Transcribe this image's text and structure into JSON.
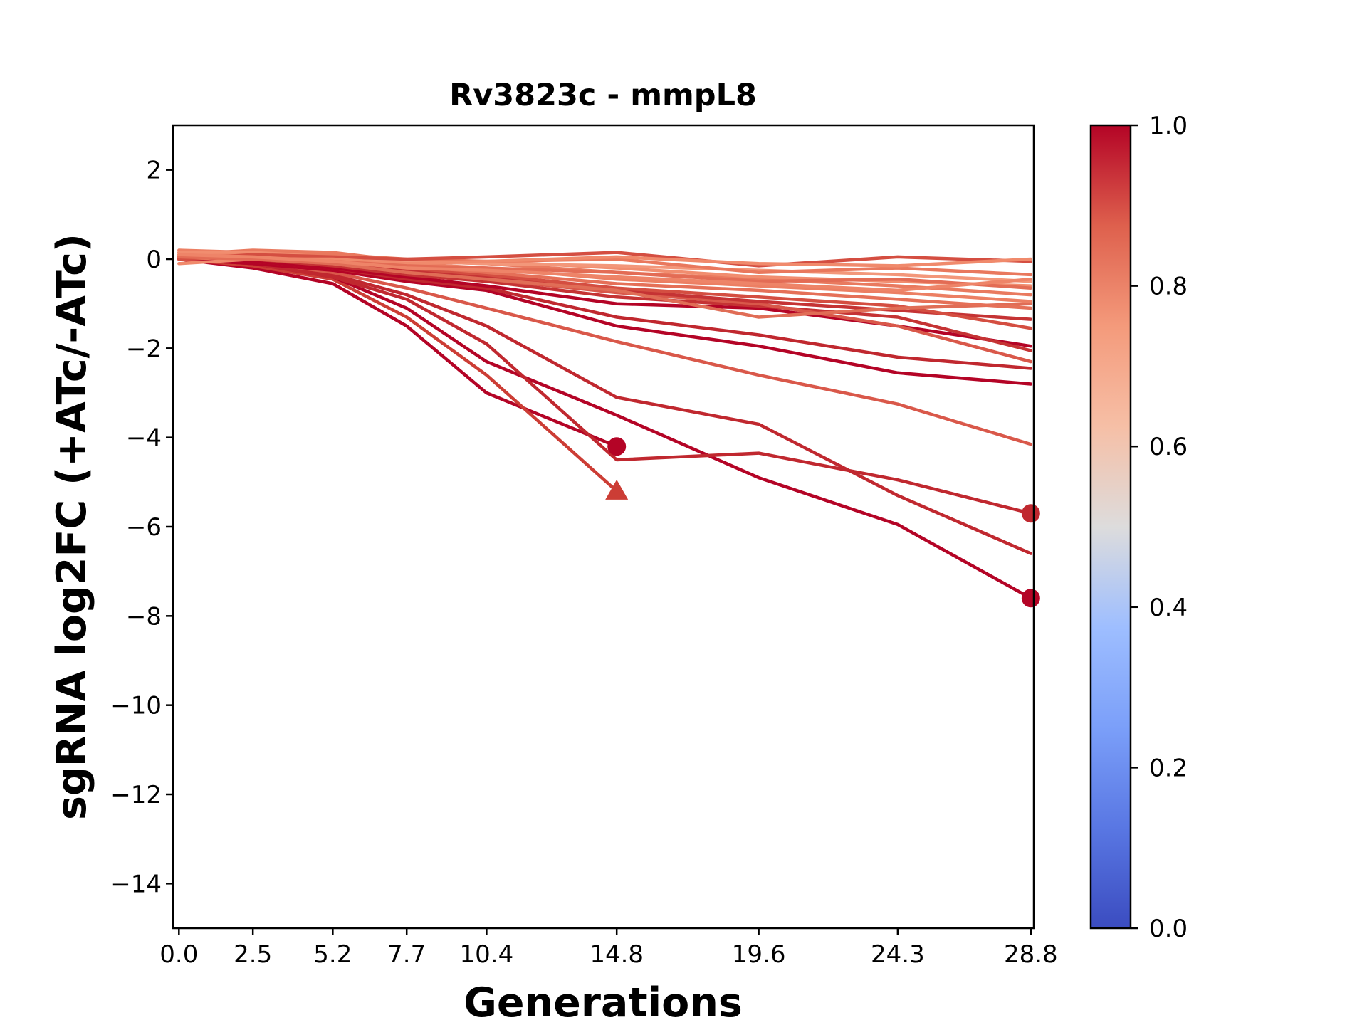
{
  "chart_data": {
    "type": "line",
    "title": "Rv3823c - mmpL8",
    "xlabel": "Generations",
    "ylabel": "sgRNA log2FC (+ATc/-ATc)",
    "x": [
      0.0,
      2.5,
      5.2,
      7.7,
      10.4,
      14.8,
      19.6,
      24.3,
      28.8
    ],
    "x_tick_labels": [
      "0.0",
      "2.5",
      "5.2",
      "7.7",
      "10.4",
      "14.8",
      "19.6",
      "24.3",
      "28.8"
    ],
    "xlim": [
      -0.2,
      28.9
    ],
    "ylim": [
      -15,
      3
    ],
    "y_ticks": [
      2,
      0,
      -2,
      -4,
      -6,
      -8,
      -10,
      -12,
      -14
    ],
    "y_tick_labels": [
      "2",
      "0",
      "−2",
      "−4",
      "−6",
      "−8",
      "−10",
      "−12",
      "−14"
    ],
    "grid": false,
    "colorbar": {
      "colormap": "coolwarm",
      "range": [
        0.0,
        1.0
      ],
      "ticks": [
        0.0,
        0.2,
        0.4,
        0.6,
        0.8,
        1.0
      ],
      "tick_labels": [
        "0.0",
        "0.2",
        "0.4",
        "0.6",
        "0.8",
        "1.0"
      ]
    },
    "series": [
      {
        "color": "#b40426",
        "values": [
          0.0,
          -0.2,
          -0.55,
          -1.5,
          -3.0,
          -4.2,
          null,
          null,
          null
        ],
        "marker": "circle"
      },
      {
        "color": "#cc3d35",
        "values": [
          0.0,
          -0.15,
          -0.45,
          -1.3,
          -2.6,
          -5.2,
          null,
          null,
          null
        ],
        "marker": "triangle"
      },
      {
        "color": "#b40426",
        "values": [
          0.0,
          -0.1,
          -0.4,
          -1.1,
          -2.3,
          -3.5,
          -4.9,
          -5.95,
          -7.6
        ],
        "marker": "circle"
      },
      {
        "color": "#c0282f",
        "values": [
          0.0,
          -0.1,
          -0.4,
          -0.9,
          -1.9,
          -4.5,
          -4.35,
          -4.95,
          -5.7
        ],
        "marker": "circle"
      },
      {
        "color": "#c0282f",
        "values": [
          0.0,
          -0.1,
          -0.35,
          -0.8,
          -1.5,
          -3.1,
          -3.7,
          -5.3,
          -6.6
        ],
        "marker": null
      },
      {
        "color": "#d9584a",
        "values": [
          0.0,
          -0.05,
          -0.3,
          -0.65,
          -1.1,
          -1.85,
          -2.6,
          -3.25,
          -4.15
        ],
        "marker": null
      },
      {
        "color": "#b40426",
        "values": [
          0.0,
          -0.1,
          -0.25,
          -0.5,
          -0.7,
          -1.5,
          -1.95,
          -2.55,
          -2.8
        ],
        "marker": null
      },
      {
        "color": "#c0282f",
        "values": [
          0.0,
          -0.05,
          -0.2,
          -0.45,
          -0.65,
          -1.3,
          -1.7,
          -2.2,
          -2.45
        ],
        "marker": null
      },
      {
        "color": "#b40426",
        "values": [
          0.0,
          -0.05,
          -0.2,
          -0.4,
          -0.6,
          -1.0,
          -1.1,
          -1.5,
          -1.95
        ],
        "marker": null
      },
      {
        "color": "#c53334",
        "values": [
          0.05,
          0.0,
          -0.15,
          -0.35,
          -0.5,
          -0.85,
          -1.05,
          -1.3,
          -2.05
        ],
        "marker": null
      },
      {
        "color": "#d9584a",
        "values": [
          0.05,
          0.0,
          -0.1,
          -0.3,
          -0.45,
          -0.75,
          -1.0,
          -1.5,
          -2.3
        ],
        "marker": null
      },
      {
        "color": "#c53334",
        "values": [
          0.1,
          0.05,
          -0.05,
          -0.25,
          -0.4,
          -0.7,
          -0.95,
          -1.15,
          -1.35
        ],
        "marker": null
      },
      {
        "color": "#d44e41",
        "values": [
          0.1,
          0.1,
          -0.05,
          -0.2,
          -0.35,
          -0.65,
          -0.85,
          -1.05,
          -1.55
        ],
        "marker": null
      },
      {
        "color": "#e06d56",
        "values": [
          0.05,
          0.0,
          -0.1,
          -0.3,
          -0.45,
          -0.7,
          -1.3,
          -1.1,
          -1.0
        ],
        "marker": null
      },
      {
        "color": "#e57058",
        "values": [
          0.15,
          0.1,
          0.0,
          -0.15,
          -0.3,
          -0.55,
          -0.7,
          -0.9,
          -1.1
        ],
        "marker": null
      },
      {
        "color": "#ec7f63",
        "values": [
          0.2,
          0.15,
          0.1,
          -0.1,
          -0.2,
          -0.45,
          -0.6,
          -0.75,
          -0.95
        ],
        "marker": null
      },
      {
        "color": "#e97a5f",
        "values": [
          0.1,
          0.2,
          0.15,
          -0.05,
          -0.1,
          -0.3,
          -0.45,
          -0.6,
          -0.8
        ],
        "marker": null
      },
      {
        "color": "#f18d6f",
        "values": [
          0.15,
          0.15,
          0.05,
          -0.05,
          -0.05,
          -0.2,
          -0.4,
          -0.5,
          -0.6
        ],
        "marker": null
      },
      {
        "color": "#f3977a",
        "values": [
          0.1,
          0.05,
          0.0,
          -0.05,
          -0.1,
          -0.15,
          -0.25,
          -0.35,
          -0.5
        ],
        "marker": null
      },
      {
        "color": "#e9785d",
        "values": [
          0.0,
          0.05,
          0.1,
          0.0,
          -0.05,
          0.0,
          -0.3,
          -0.2,
          -0.35
        ],
        "marker": null
      },
      {
        "color": "#d44e41",
        "values": [
          0.0,
          0.1,
          0.05,
          0.0,
          0.05,
          0.15,
          -0.15,
          0.05,
          -0.05
        ],
        "marker": null
      },
      {
        "color": "#f08a6c",
        "values": [
          -0.1,
          0.0,
          0.0,
          -0.1,
          -0.05,
          0.05,
          -0.1,
          -0.15,
          0.0
        ],
        "marker": null
      },
      {
        "color": "#e36c55",
        "values": [
          0.05,
          0.0,
          -0.05,
          -0.15,
          -0.2,
          -0.3,
          -0.5,
          -0.45,
          -0.65
        ],
        "marker": null
      },
      {
        "color": "#ee8468",
        "values": [
          0.1,
          0.05,
          -0.05,
          -0.2,
          -0.25,
          -0.4,
          -0.55,
          -0.7,
          -0.45
        ],
        "marker": null
      }
    ]
  }
}
